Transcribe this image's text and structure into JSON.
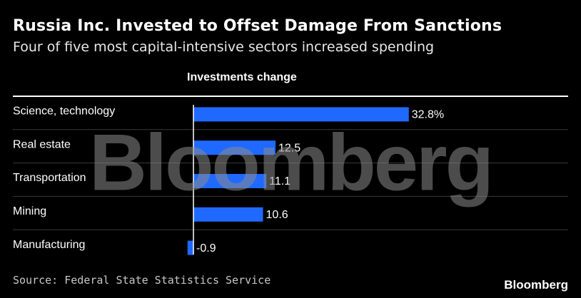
{
  "colors": {
    "background": "#000000",
    "bar": "#1f69ff",
    "text": "#ffffff",
    "divider": "#3a3a3a",
    "baseline": "#ffffff",
    "watermark": "#8a8a8a"
  },
  "logo": "Bloomberg",
  "watermark": "Bloomberg",
  "chart_data": {
    "type": "bar",
    "orientation": "horizontal",
    "title": "Russia Inc. Invested to Offset Damage From Sanctions",
    "subtitle": "Four of five most capital-intensive sectors increased spending",
    "column_header": "Investments change",
    "categories": [
      "Science, technology",
      "Real estate",
      "Transportation",
      "Mining",
      "Manufacturing"
    ],
    "values": [
      32.8,
      12.5,
      11.1,
      10.6,
      -0.9
    ],
    "value_labels": [
      "32.8%",
      "12.5",
      "11.1",
      "10.6",
      "-0.9"
    ],
    "unit": "%",
    "xlim": [
      -1,
      33
    ],
    "source": "Source: Federal State Statistics Service"
  }
}
